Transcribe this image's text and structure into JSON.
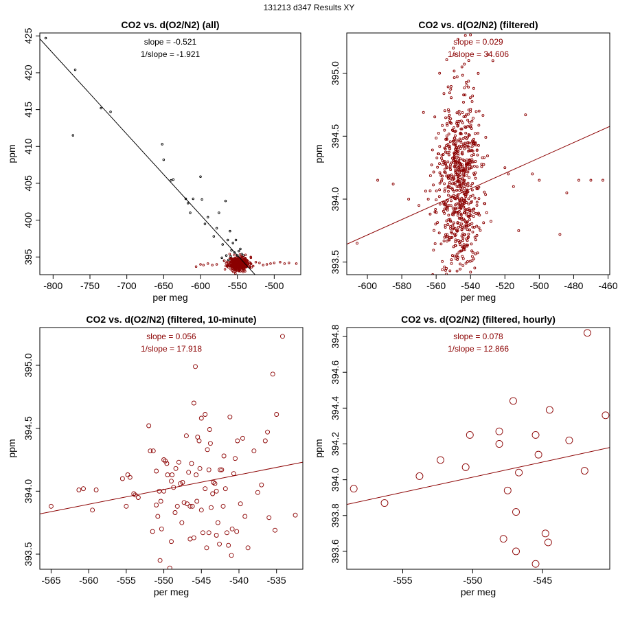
{
  "figure_title": "131213   d347   Results XY",
  "colors": {
    "all_points": "#000000",
    "filtered": "#8b0000",
    "axes": "#000000"
  },
  "chart_data": [
    {
      "type": "scatter",
      "title": "CO2 vs. d(O2/N2) (all)",
      "xlabel": "per meg",
      "ylabel": "ppm",
      "xlim": [
        -818,
        -464
      ],
      "ylim": [
        392.6,
        425.4
      ],
      "xticks": [
        -800,
        -750,
        -700,
        -650,
        -600,
        -550,
        -500
      ],
      "yticks": [
        395,
        400,
        405,
        410,
        415,
        420,
        425
      ],
      "annotations": [
        "slope = -0.521",
        "1/slope = -1.921"
      ],
      "annotation_color": "#000000",
      "fit": {
        "slope": -0.521,
        "x": [
          -818,
          -526
        ],
        "y": [
          424.6,
          392.6
        ],
        "color": "#000000"
      },
      "series": [
        {
          "color": "#000000",
          "marker_size": 1.3,
          "points": [
            [
              -810,
              424.7
            ],
            [
              -770,
              420.4
            ],
            [
              -773,
              411.5
            ],
            [
              -735,
              415.2
            ],
            [
              -722,
              414.7
            ],
            [
              -652,
              410.3
            ],
            [
              -650,
              408.2
            ],
            [
              -640,
              405.4
            ],
            [
              -637,
              405.5
            ],
            [
              -620,
              402.9
            ],
            [
              -617,
              402.3
            ],
            [
              -614,
              401.0
            ],
            [
              -610,
              402.9
            ],
            [
              -600,
              405.9
            ],
            [
              -598,
              402.8
            ],
            [
              -594,
              399.5
            ],
            [
              -590,
              400.4
            ],
            [
              -582,
              397.8
            ],
            [
              -578,
              398.9
            ],
            [
              -575,
              401.0
            ],
            [
              -570,
              396.7
            ],
            [
              -566,
              402.6
            ],
            [
              -563,
              397.3
            ],
            [
              -560,
              398.5
            ],
            [
              -558,
              395.9
            ],
            [
              -556,
              396.9
            ],
            [
              -554,
              395.6
            ],
            [
              -552,
              397.3
            ],
            [
              -550,
              395.2
            ],
            [
              -548,
              395.8
            ],
            [
              -546,
              396.1
            ],
            [
              -544,
              395.4
            ],
            [
              -553,
              394.8
            ],
            [
              -559,
              395.1
            ],
            [
              -562,
              394.6
            ],
            [
              -565,
              395.2
            ],
            [
              -568,
              394.5
            ],
            [
              -571,
              394.9
            ],
            [
              -545,
              394.9
            ],
            [
              -542,
              395.2
            ]
          ]
        },
        {
          "color": "#8b0000",
          "marker_size": 1.3,
          "cluster": {
            "cx": -548,
            "cy": 394.1,
            "sx": 7,
            "sy": 0.45,
            "n": 420,
            "seed": 11
          },
          "points": [
            [
              -470,
              394.1
            ],
            [
              -480,
              394.2
            ],
            [
              -486,
              394.1
            ],
            [
              -492,
              394.3
            ],
            [
              -500,
              394.2
            ],
            [
              -505,
              394.1
            ],
            [
              -510,
              394.0
            ],
            [
              -515,
              393.9
            ],
            [
              -520,
              394.2
            ],
            [
              -525,
              394.3
            ],
            [
              -578,
              394.0
            ],
            [
              -584,
              393.9
            ],
            [
              -590,
              394.1
            ],
            [
              -596,
              393.9
            ],
            [
              -606,
              393.7
            ],
            [
              -600,
              394.0
            ]
          ]
        }
      ]
    },
    {
      "type": "scatter",
      "title": "CO2 vs. d(O2/N2) (filtered)",
      "xlabel": "per meg",
      "ylabel": "ppm",
      "xlim": [
        -612,
        -459
      ],
      "ylim": [
        393.4,
        395.32
      ],
      "xticks": [
        -600,
        -580,
        -560,
        -540,
        -520,
        -500,
        -480,
        -460
      ],
      "yticks": [
        393.5,
        394.0,
        394.5,
        395.0
      ],
      "annotations": [
        "slope = 0.029",
        "1/slope = 34.606"
      ],
      "annotation_color": "#8b0000",
      "fit": {
        "slope": 0.029,
        "x": [
          -612,
          -459
        ],
        "y": [
          393.642,
          394.578
        ],
        "color": "#8b0000"
      },
      "series": [
        {
          "color": "#8b0000",
          "marker_size": 1.5,
          "cluster": {
            "cx": -547,
            "cy": 394.1,
            "sx": 6.5,
            "sy": 0.38,
            "n": 700,
            "seed": 23
          },
          "points": [
            [
              -606,
              393.65
            ],
            [
              -594,
              394.15
            ],
            [
              -585,
              394.12
            ],
            [
              -576,
              394.0
            ],
            [
              -570,
              393.95
            ],
            [
              -520,
              394.25
            ],
            [
              -518,
              394.2
            ],
            [
              -515,
              394.1
            ],
            [
              -512,
              393.75
            ],
            [
              -508,
              394.67
            ],
            [
              -504,
              394.2
            ],
            [
              -500,
              394.15
            ],
            [
              -488,
              393.72
            ],
            [
              -484,
              394.05
            ],
            [
              -477,
              394.15
            ],
            [
              -470,
              394.15
            ],
            [
              -463,
              394.15
            ],
            [
              -527,
              395.1
            ],
            [
              -530,
              395.15
            ],
            [
              -535,
              394.7
            ],
            [
              -558,
              395.0
            ],
            [
              -550,
              395.2
            ],
            [
              -543,
              395.3
            ],
            [
              -562,
              393.4
            ],
            [
              -554,
              393.45
            ],
            [
              -540,
              393.42
            ]
          ]
        }
      ]
    },
    {
      "type": "scatter",
      "title": "CO2 vs. d(O2/N2) (filtered, 10-minute)",
      "xlabel": "per meg",
      "ylabel": "ppm",
      "xlim": [
        -566.5,
        -531.5
      ],
      "ylim": [
        393.38,
        395.3
      ],
      "xticks": [
        -565,
        -560,
        -555,
        -550,
        -545,
        -540,
        -535
      ],
      "yticks": [
        393.5,
        394.0,
        394.5,
        395.0
      ],
      "annotations": [
        "slope = 0.056",
        "1/slope = 17.918"
      ],
      "annotation_color": "#8b0000",
      "fit": {
        "slope": 0.056,
        "x": [
          -566.5,
          -531.5
        ],
        "y": [
          393.82,
          394.23
        ],
        "color": "#8b0000"
      },
      "series": [
        {
          "color": "#8b0000",
          "marker_size": 3,
          "points": [
            [
              -565,
              393.88
            ],
            [
              -561.3,
              394.01
            ],
            [
              -560.7,
              394.02
            ],
            [
              -559.5,
              393.85
            ],
            [
              -559,
              394.01
            ],
            [
              -555.5,
              394.1
            ],
            [
              -555,
              393.88
            ],
            [
              -554.8,
              394.13
            ],
            [
              -554.5,
              394.11
            ],
            [
              -554,
              393.98
            ],
            [
              -553.8,
              393.97
            ],
            [
              -553.4,
              393.95
            ],
            [
              -552,
              394.52
            ],
            [
              -551.8,
              394.32
            ],
            [
              -551.5,
              393.68
            ],
            [
              -551.4,
              394.32
            ],
            [
              -551,
              393.89
            ],
            [
              -551,
              394.16
            ],
            [
              -550.8,
              393.8
            ],
            [
              -550.6,
              394.0
            ],
            [
              -550.5,
              393.45
            ],
            [
              -550.4,
              393.92
            ],
            [
              -550.3,
              393.7
            ],
            [
              -550,
              394.25
            ],
            [
              -550,
              394.0
            ],
            [
              -549.8,
              394.24
            ],
            [
              -549.6,
              394.22
            ],
            [
              -549.5,
              394.13
            ],
            [
              -549.2,
              393.39
            ],
            [
              -549,
              394.08
            ],
            [
              -549,
              393.6
            ],
            [
              -548.9,
              394.13
            ],
            [
              -548.7,
              394.03
            ],
            [
              -548.5,
              393.83
            ],
            [
              -548.4,
              394.18
            ],
            [
              -548.2,
              393.88
            ],
            [
              -548,
              394.23
            ],
            [
              -547.8,
              394.06
            ],
            [
              -547.6,
              393.75
            ],
            [
              -547.5,
              394.07
            ],
            [
              -547.3,
              393.91
            ],
            [
              -547,
              394.44
            ],
            [
              -546.9,
              393.9
            ],
            [
              -546.7,
              394.15
            ],
            [
              -546.5,
              393.88
            ],
            [
              -546.5,
              393.62
            ],
            [
              -546.3,
              394.22
            ],
            [
              -546.2,
              393.88
            ],
            [
              -546,
              394.7
            ],
            [
              -546,
              393.63
            ],
            [
              -545.8,
              394.99
            ],
            [
              -545.7,
              394.13
            ],
            [
              -545.6,
              393.92
            ],
            [
              -545.5,
              394.43
            ],
            [
              -545.3,
              394.4
            ],
            [
              -545.2,
              394.18
            ],
            [
              -545,
              394.58
            ],
            [
              -545,
              393.85
            ],
            [
              -544.8,
              393.67
            ],
            [
              -544.5,
              394.61
            ],
            [
              -544.5,
              394.02
            ],
            [
              -544.3,
              393.55
            ],
            [
              -544.2,
              394.33
            ],
            [
              -544,
              394.17
            ],
            [
              -544,
              393.67
            ],
            [
              -543.9,
              394.49
            ],
            [
              -543.8,
              394.38
            ],
            [
              -543.7,
              393.87
            ],
            [
              -543.5,
              393.98
            ],
            [
              -543.4,
              394.07
            ],
            [
              -543.2,
              394.06
            ],
            [
              -543,
              394.0
            ],
            [
              -543,
              393.65
            ],
            [
              -542.8,
              393.75
            ],
            [
              -542.6,
              393.58
            ],
            [
              -542.5,
              394.17
            ],
            [
              -542.3,
              394.17
            ],
            [
              -542.1,
              393.88
            ],
            [
              -542,
              394.28
            ],
            [
              -541.8,
              394.02
            ],
            [
              -541.6,
              393.67
            ],
            [
              -541.4,
              393.57
            ],
            [
              -541.2,
              394.59
            ],
            [
              -541,
              393.49
            ],
            [
              -540.9,
              393.7
            ],
            [
              -540.7,
              394.14
            ],
            [
              -540.5,
              394.26
            ],
            [
              -540.3,
              393.68
            ],
            [
              -540.2,
              394.4
            ],
            [
              -539.8,
              393.9
            ],
            [
              -539.5,
              394.42
            ],
            [
              -539.2,
              393.8
            ],
            [
              -538.8,
              393.55
            ],
            [
              -538,
              394.32
            ],
            [
              -537.5,
              393.99
            ],
            [
              -537,
              394.05
            ],
            [
              -536.5,
              394.4
            ],
            [
              -536.2,
              394.47
            ],
            [
              -536,
              393.79
            ],
            [
              -535.5,
              394.93
            ],
            [
              -535.2,
              393.69
            ],
            [
              -535,
              394.61
            ],
            [
              -534.2,
              395.23
            ],
            [
              -532.5,
              393.81
            ]
          ]
        }
      ]
    },
    {
      "type": "scatter",
      "title": "CO2 vs. d(O2/N2) (filtered, hourly)",
      "xlabel": "per meg",
      "ylabel": "ppm",
      "xlim": [
        -559,
        -540.2
      ],
      "ylim": [
        393.5,
        394.85
      ],
      "xticks": [
        -555,
        -550,
        -545
      ],
      "yticks": [
        393.6,
        393.8,
        394.0,
        394.2,
        394.4,
        394.6,
        394.8
      ],
      "annotations": [
        "slope = 0.078",
        "1/slope = 12.866"
      ],
      "annotation_color": "#8b0000",
      "fit": {
        "slope": 0.078,
        "x": [
          -559,
          -540.2
        ],
        "y": [
          393.862,
          394.18
        ],
        "color": "#8b0000"
      },
      "series": [
        {
          "color": "#8b0000",
          "marker_size": 5,
          "points": [
            [
              -558.5,
              393.95
            ],
            [
              -556.3,
              393.87
            ],
            [
              -553.8,
              394.02
            ],
            [
              -552.3,
              394.11
            ],
            [
              -550.5,
              394.07
            ],
            [
              -550.2,
              394.25
            ],
            [
              -548.1,
              394.27
            ],
            [
              -548.1,
              394.2
            ],
            [
              -547.8,
              393.67
            ],
            [
              -547.5,
              393.94
            ],
            [
              -547.1,
              394.44
            ],
            [
              -546.9,
              393.82
            ],
            [
              -546.9,
              393.6
            ],
            [
              -546.7,
              394.04
            ],
            [
              -545.5,
              394.25
            ],
            [
              -545.5,
              393.53
            ],
            [
              -545.3,
              394.14
            ],
            [
              -544.8,
              393.7
            ],
            [
              -544.6,
              393.65
            ],
            [
              -544.5,
              394.39
            ],
            [
              -543.1,
              394.22
            ],
            [
              -542,
              394.05
            ],
            [
              -541.8,
              394.82
            ],
            [
              -540.5,
              394.36
            ]
          ]
        }
      ]
    }
  ]
}
